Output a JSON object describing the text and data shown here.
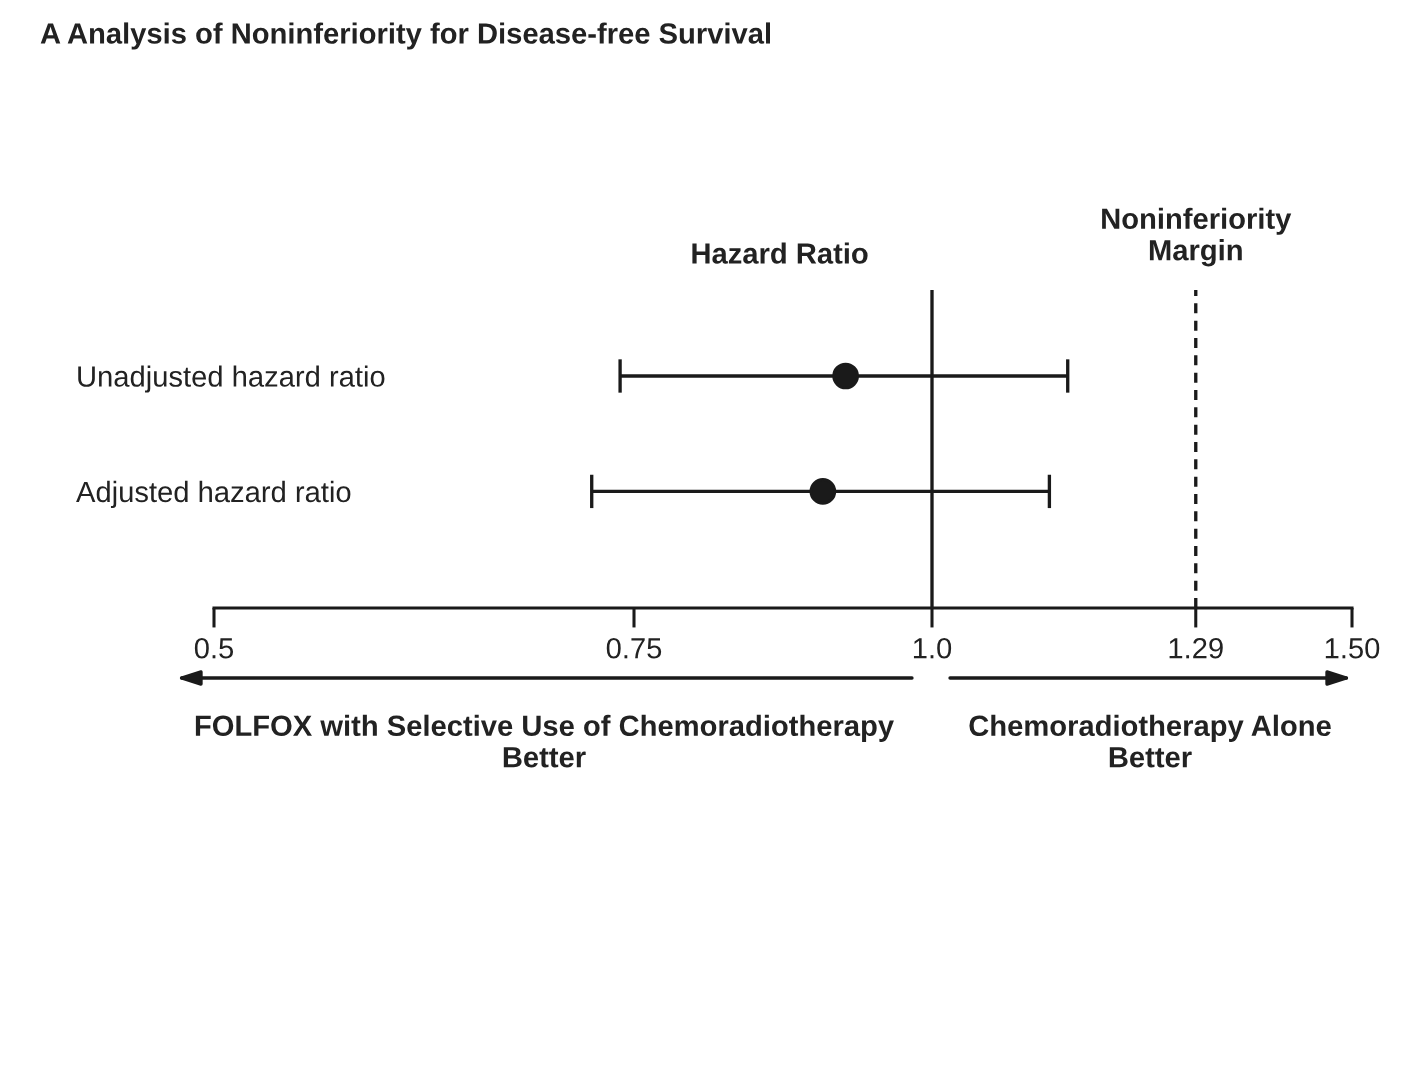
{
  "chart_data": {
    "type": "scatter",
    "orientation": "horizontal",
    "title": "A Analysis of Noninferiority for Disease-free Survival",
    "xlabel": "Hazard Ratio",
    "categories": [
      "Unadjusted hazard ratio",
      "Adjusted hazard ratio"
    ],
    "values": [
      0.92,
      0.9
    ],
    "errors": [
      [
        0.74,
        1.14
      ],
      [
        0.72,
        1.12
      ]
    ],
    "color": "#1a1a1a",
    "marker": "circle",
    "log": "x",
    "xlim": [
      0.5,
      1.5
    ],
    "xticks": [
      0.5,
      0.75,
      {
        "value": 1,
        "label": "1.0"
      },
      1.29,
      {
        "value": 1.5,
        "label": "1.50"
      }
    ],
    "ref_lines": [
      {
        "axis": "x",
        "value": 1
      },
      {
        "axis": "x",
        "value": 1.29,
        "label": "Noninferiority\nMargin",
        "line_style": "dashed"
      }
    ],
    "annotations": [
      "FOLFOX with Selective Use of Chemoradiotherapy\nBetter",
      "Chemoradiotherapy Alone\nBetter"
    ]
  }
}
